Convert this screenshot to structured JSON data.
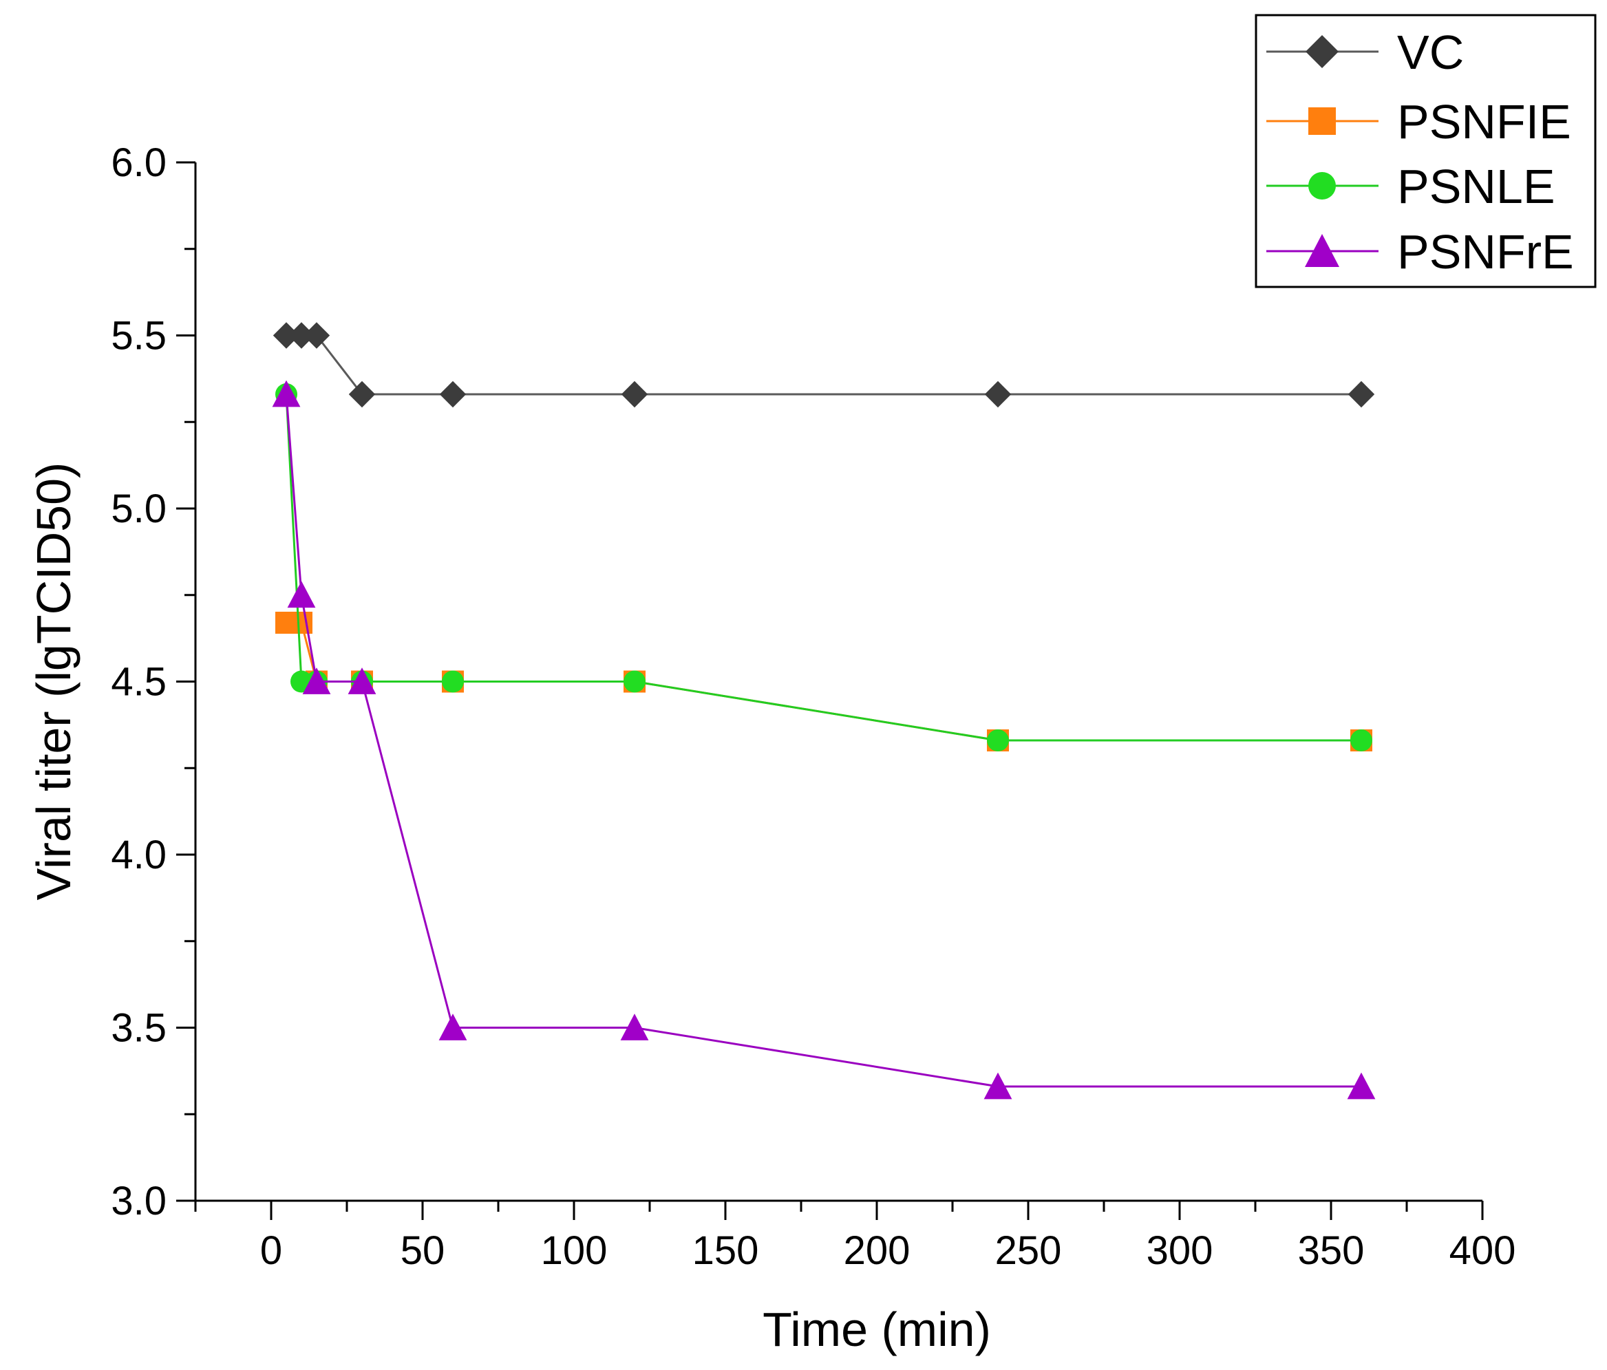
{
  "chart_data": {
    "type": "line",
    "title": "",
    "xlabel": "Time (min)",
    "ylabel": "Viral titer (lgTCID50)",
    "xlim": [
      -25,
      400
    ],
    "ylim": [
      3.0,
      6.0
    ],
    "x_ticks": [
      0,
      50,
      100,
      150,
      200,
      250,
      300,
      350,
      400
    ],
    "y_ticks": [
      3.0,
      3.5,
      4.0,
      4.5,
      5.0,
      5.5,
      6.0
    ],
    "x_tick_labels": [
      "0",
      "50",
      "100",
      "150",
      "200",
      "250",
      "300",
      "350",
      "400"
    ],
    "y_tick_labels": [
      "3.0",
      "3.5",
      "4.0",
      "4.5",
      "5.0",
      "5.5",
      "6.0"
    ],
    "legend_position": "top-right",
    "series": [
      {
        "name": "VC",
        "color": "#3c3c3c",
        "line_color": "#5a5a5a",
        "marker": "diamond",
        "x": [
          5,
          10,
          15,
          30,
          60,
          120,
          240,
          360
        ],
        "y": [
          5.5,
          5.5,
          5.5,
          5.33,
          5.33,
          5.33,
          5.33,
          5.33
        ]
      },
      {
        "name": "PSNFIE",
        "color": "#ff7f0e",
        "line_color": "#ff7f0e",
        "marker": "square",
        "x": [
          5,
          10,
          15,
          30,
          60,
          120,
          240,
          360
        ],
        "y": [
          4.67,
          4.67,
          4.5,
          4.5,
          4.5,
          4.5,
          4.33,
          4.33
        ]
      },
      {
        "name": "PSNLE",
        "color": "#22dd22",
        "line_color": "#22cc22",
        "marker": "circle",
        "x": [
          5,
          10,
          15,
          30,
          60,
          120,
          240,
          360
        ],
        "y": [
          5.33,
          4.5,
          4.5,
          4.5,
          4.5,
          4.5,
          4.33,
          4.33
        ]
      },
      {
        "name": "PSNFrE",
        "color": "#a000c8",
        "line_color": "#9a00c0",
        "marker": "triangle",
        "x": [
          5,
          10,
          15,
          30,
          60,
          120,
          240,
          360
        ],
        "y": [
          5.33,
          4.75,
          4.5,
          4.5,
          3.5,
          3.5,
          3.33,
          3.33
        ]
      }
    ]
  }
}
